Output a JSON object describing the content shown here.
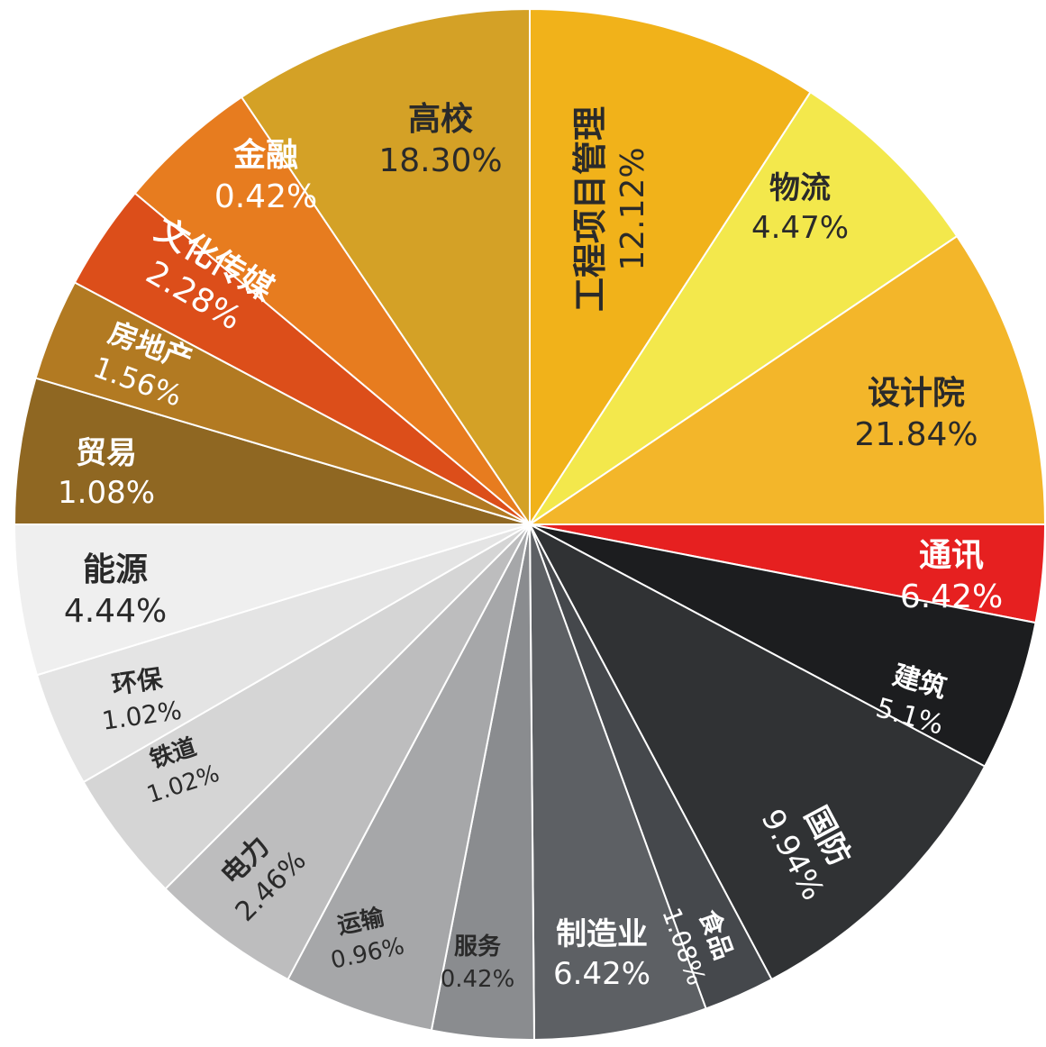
{
  "chart_data": {
    "type": "pie",
    "title": "",
    "slices": [
      {
        "label": "通讯",
        "value": "6.42%",
        "color": "#e62020",
        "text_color": "#ffffff"
      },
      {
        "label": "建筑",
        "value": "5.1%",
        "color": "#1c1d1f",
        "text_color": "#ffffff"
      },
      {
        "label": "国防",
        "value": "9.94%",
        "color": "#303234",
        "text_color": "#ffffff"
      },
      {
        "label": "食品",
        "value": "1.08%",
        "color": "#45484c",
        "text_color": "#ffffff"
      },
      {
        "label": "制造业",
        "value": "6.42%",
        "color": "#5d6064",
        "text_color": "#ffffff"
      },
      {
        "label": "服务",
        "value": "0.42%",
        "color": "#8a8c8f",
        "text_color": "#2a2a2a"
      },
      {
        "label": "运输",
        "value": "0.96%",
        "color": "#a6a7a9",
        "text_color": "#2a2a2a"
      },
      {
        "label": "电力",
        "value": "2.46%",
        "color": "#bdbdbe",
        "text_color": "#2a2a2a"
      },
      {
        "label": "铁道",
        "value": "1.02%",
        "color": "#d5d5d5",
        "text_color": "#2a2a2a"
      },
      {
        "label": "环保",
        "value": "1.02%",
        "color": "#e4e4e4",
        "text_color": "#2a2a2a"
      },
      {
        "label": "能源",
        "value": "4.44%",
        "color": "#efefef",
        "text_color": "#2a2a2a"
      },
      {
        "label": "贸易",
        "value": "1.08%",
        "color": "#8f6722",
        "text_color": "#ffffff"
      },
      {
        "label": "房地产",
        "value": "1.56%",
        "color": "#b27a22",
        "text_color": "#ffffff"
      },
      {
        "label": "文化传媒",
        "value": "2.28%",
        "color": "#dc4e1a",
        "text_color": "#ffffff"
      },
      {
        "label": "金融",
        "value": "0.42%",
        "color": "#e77c1f",
        "text_color": "#ffffff"
      },
      {
        "label": "高校",
        "value": "18.30%",
        "color": "#d4a126",
        "text_color": "#2a2a2a"
      },
      {
        "label": "工程项目管理",
        "value": "12.12%",
        "color": "#f1b21a",
        "text_color": "#2a2a2a"
      },
      {
        "label": "物流",
        "value": "4.47%",
        "color": "#f3e84c",
        "text_color": "#2a2a2a"
      },
      {
        "label": "设计院",
        "value": "21.84%",
        "color": "#f3b62a",
        "text_color": "#2a2a2a"
      }
    ]
  }
}
